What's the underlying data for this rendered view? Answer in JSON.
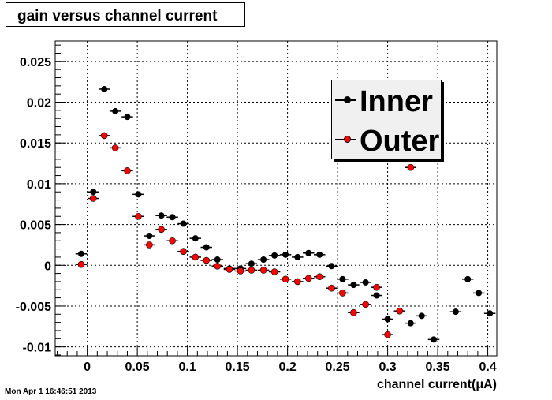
{
  "chart_data": {
    "type": "scatter",
    "title": "gain versus channel current",
    "xlabel": "channel current(μA)",
    "ylabel": "",
    "xlim": [
      -0.032,
      0.409
    ],
    "ylim": [
      -0.0111,
      0.0275
    ],
    "x_ticks": [
      "0",
      "0.05",
      "0.1",
      "0.15",
      "0.2",
      "0.25",
      "0.3",
      "0.35",
      "0.4"
    ],
    "y_ticks": [
      "-0.01",
      "-0.005",
      "0",
      "0.005",
      "0.01",
      "0.015",
      "0.02",
      "0.025"
    ],
    "grid": true,
    "legend": "top-right",
    "series": [
      {
        "name": "Inner",
        "color": "#000000",
        "points": [
          [
            -0.006,
            0.0014
          ],
          [
            0.006,
            0.009
          ],
          [
            0.017,
            0.0216
          ],
          [
            0.028,
            0.0189
          ],
          [
            0.04,
            0.0182
          ],
          [
            0.051,
            0.0087
          ],
          [
            0.062,
            0.0036
          ],
          [
            0.074,
            0.0061
          ],
          [
            0.085,
            0.0059
          ],
          [
            0.096,
            0.0051
          ],
          [
            0.108,
            0.0033
          ],
          [
            0.119,
            0.0022
          ],
          [
            0.13,
            0.0007
          ],
          [
            0.142,
            -0.0004
          ],
          [
            0.153,
            -0.0004
          ],
          [
            0.164,
            0.0002
          ],
          [
            0.176,
            0.0007
          ],
          [
            0.187,
            0.0012
          ],
          [
            0.198,
            0.0013
          ],
          [
            0.21,
            0.001
          ],
          [
            0.221,
            0.0015
          ],
          [
            0.232,
            0.0013
          ],
          [
            0.244,
            -0.0001
          ],
          [
            0.255,
            -0.0017
          ],
          [
            0.266,
            -0.0024
          ],
          [
            0.278,
            -0.0021
          ],
          [
            0.289,
            -0.0037
          ],
          [
            0.3,
            -0.0066
          ],
          [
            0.323,
            -0.0071
          ],
          [
            0.334,
            -0.0062
          ],
          [
            0.346,
            -0.0091
          ],
          [
            0.368,
            -0.0057
          ],
          [
            0.38,
            -0.0017
          ],
          [
            0.391,
            -0.0034
          ],
          [
            0.402,
            -0.0059
          ]
        ]
      },
      {
        "name": "Outer",
        "color": "#ff0000",
        "points": [
          [
            -0.006,
            0.0001
          ],
          [
            0.006,
            0.0082
          ],
          [
            0.017,
            0.0159
          ],
          [
            0.028,
            0.0144
          ],
          [
            0.04,
            0.0116
          ],
          [
            0.051,
            0.006
          ],
          [
            0.062,
            0.0025
          ],
          [
            0.074,
            0.0044
          ],
          [
            0.085,
            0.003
          ],
          [
            0.096,
            0.0017
          ],
          [
            0.108,
            0.001
          ],
          [
            0.119,
            0.0006
          ],
          [
            0.13,
            -0.0001
          ],
          [
            0.142,
            -0.0005
          ],
          [
            0.153,
            -0.0007
          ],
          [
            0.164,
            -0.0006
          ],
          [
            0.176,
            -0.0006
          ],
          [
            0.187,
            -0.0008
          ],
          [
            0.198,
            -0.0017
          ],
          [
            0.21,
            -0.002
          ],
          [
            0.221,
            -0.0016
          ],
          [
            0.232,
            -0.0014
          ],
          [
            0.244,
            -0.0028
          ],
          [
            0.255,
            -0.0034
          ],
          [
            0.266,
            -0.0058
          ],
          [
            0.278,
            -0.0048
          ],
          [
            0.289,
            -0.0027
          ],
          [
            0.3,
            -0.0085
          ],
          [
            0.312,
            -0.0056
          ],
          [
            0.323,
            0.012
          ]
        ]
      }
    ]
  },
  "footer": {
    "timestamp": "Mon Apr  1 16:46:51 2013"
  }
}
